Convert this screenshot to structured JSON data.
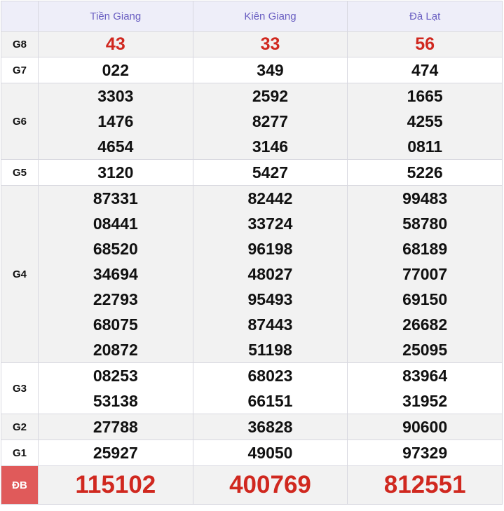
{
  "provinces": [
    "Tiền Giang",
    "Kiên Giang",
    "Đà Lạt"
  ],
  "prizes": [
    {
      "label": "G8",
      "values": [
        [
          "43"
        ],
        [
          "33"
        ],
        [
          "56"
        ]
      ],
      "highlight": true
    },
    {
      "label": "G7",
      "values": [
        [
          "022"
        ],
        [
          "349"
        ],
        [
          "474"
        ]
      ]
    },
    {
      "label": "G6",
      "values": [
        [
          "3303",
          "1476",
          "4654"
        ],
        [
          "2592",
          "8277",
          "3146"
        ],
        [
          "1665",
          "4255",
          "0811"
        ]
      ]
    },
    {
      "label": "G5",
      "values": [
        [
          "3120"
        ],
        [
          "5427"
        ],
        [
          "5226"
        ]
      ]
    },
    {
      "label": "G4",
      "values": [
        [
          "87331",
          "08441",
          "68520",
          "34694",
          "22793",
          "68075",
          "20872"
        ],
        [
          "82442",
          "33724",
          "96198",
          "48027",
          "95493",
          "87443",
          "51198"
        ],
        [
          "99483",
          "58780",
          "68189",
          "77007",
          "69150",
          "26682",
          "25095"
        ]
      ]
    },
    {
      "label": "G3",
      "values": [
        [
          "08253",
          "53138"
        ],
        [
          "68023",
          "66151"
        ],
        [
          "83964",
          "31952"
        ]
      ]
    },
    {
      "label": "G2",
      "values": [
        [
          "27788"
        ],
        [
          "36828"
        ],
        [
          "90600"
        ]
      ]
    },
    {
      "label": "G1",
      "values": [
        [
          "25927"
        ],
        [
          "49050"
        ],
        [
          "97329"
        ]
      ]
    },
    {
      "label": "ĐB",
      "values": [
        [
          "115102"
        ],
        [
          "400769"
        ],
        [
          "812551"
        ]
      ],
      "highlight": true,
      "special": true
    }
  ],
  "colors": {
    "header_text": "#6a5fc2",
    "highlight": "#d0281f",
    "special_label_bg": "#e05a5a"
  }
}
